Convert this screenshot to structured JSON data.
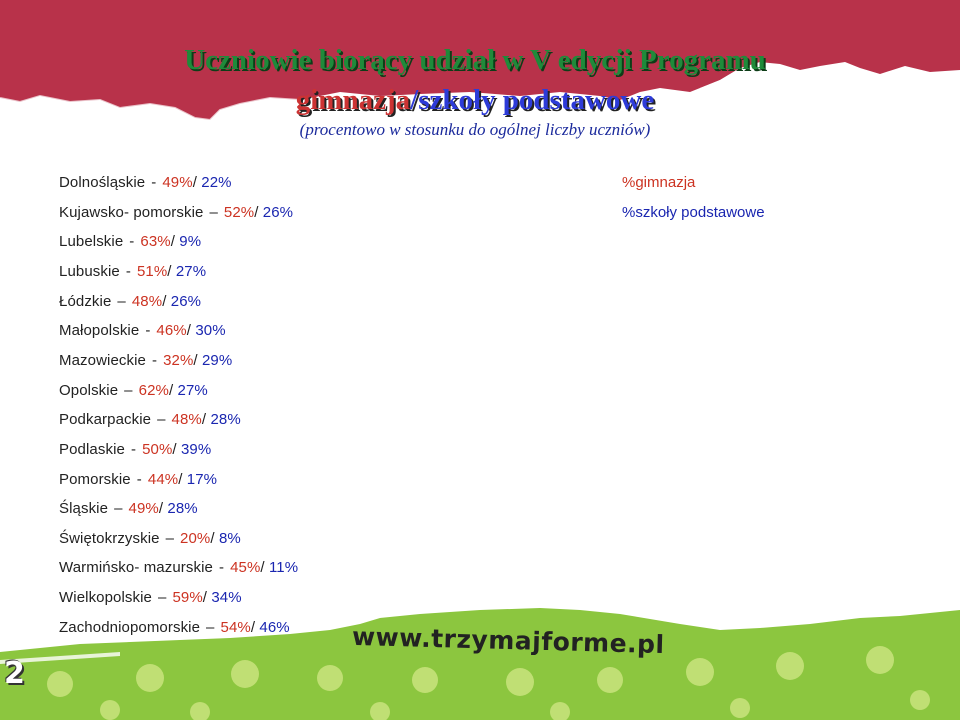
{
  "title": {
    "line1": "Uczniowie biorący udział w V edycji Programu",
    "line2_part1": "gimnazja",
    "line2_slash": "/",
    "line2_part2": "szkoły podstawowe",
    "subtitle": "(procentowo w stosunku do ogólnej liczby uczniów)"
  },
  "legend": {
    "gimnazja": "%gimnazja",
    "szkoly": "%szkoły podstawowe"
  },
  "colors": {
    "banner": "#b8324a",
    "gimnazja": "#cc3322",
    "szkoly": "#1a26b0",
    "bottom_band": "#8cc63f"
  },
  "regions": [
    {
      "name": "Dolnośląskie",
      "sep": "-",
      "gimnazja": "49%",
      "slash": "/",
      "szkoly": "22%"
    },
    {
      "name": "Kujawsko- pomorskie",
      "sep": "–",
      "gimnazja": "52%",
      "slash": "/",
      "szkoly": "26%"
    },
    {
      "name": "Lubelskie",
      "sep": "-",
      "gimnazja": "63%",
      "slash": "/",
      "szkoly": "9%"
    },
    {
      "name": "Lubuskie",
      "sep": "-",
      "gimnazja": "51%",
      "slash": "/",
      "szkoly": "27%"
    },
    {
      "name": "Łódzkie",
      "sep": "–",
      "gimnazja": "48%",
      "slash": "/",
      "szkoly": "26%"
    },
    {
      "name": "Małopolskie",
      "sep": "-",
      "gimnazja": "46%",
      "slash": "/",
      "szkoly": "30%"
    },
    {
      "name": "Mazowieckie",
      "sep": "-",
      "gimnazja": "32%",
      "slash": "/",
      "szkoly": "29%"
    },
    {
      "name": "Opolskie",
      "sep": "–",
      "gimnazja": "62%",
      "slash": "/",
      "szkoly": "27%"
    },
    {
      "name": "Podkarpackie",
      "sep": "–",
      "gimnazja": "48%",
      "slash": "/",
      "szkoly": "28%"
    },
    {
      "name": "Podlaskie",
      "sep": "-",
      "gimnazja": "50%",
      "slash": "/",
      "szkoly": "39%"
    },
    {
      "name": "Pomorskie",
      "sep": "-",
      "gimnazja": "44%",
      "slash": "/",
      "szkoly": "17%"
    },
    {
      "name": "Śląskie",
      "sep": "–",
      "gimnazja": "49%",
      "slash": "/",
      "szkoly": "28%"
    },
    {
      "name": "Świętokrzyskie",
      "sep": "–",
      "gimnazja": "20%",
      "slash": "/",
      "szkoly": "8%"
    },
    {
      "name": "Warmińsko- mazurskie",
      "sep": "-",
      "gimnazja": "45%",
      "slash": "/",
      "szkoly": "11%"
    },
    {
      "name": "Wielkopolskie",
      "sep": "–",
      "gimnazja": "59%",
      "slash": "/",
      "szkoly": "34%"
    },
    {
      "name": "Zachodniopomorskie",
      "sep": "–",
      "gimnazja": "54%",
      "slash": "/",
      "szkoly": "46%"
    }
  ],
  "footer": {
    "website": "www.trzymajforme.pl",
    "page_number": "2"
  }
}
